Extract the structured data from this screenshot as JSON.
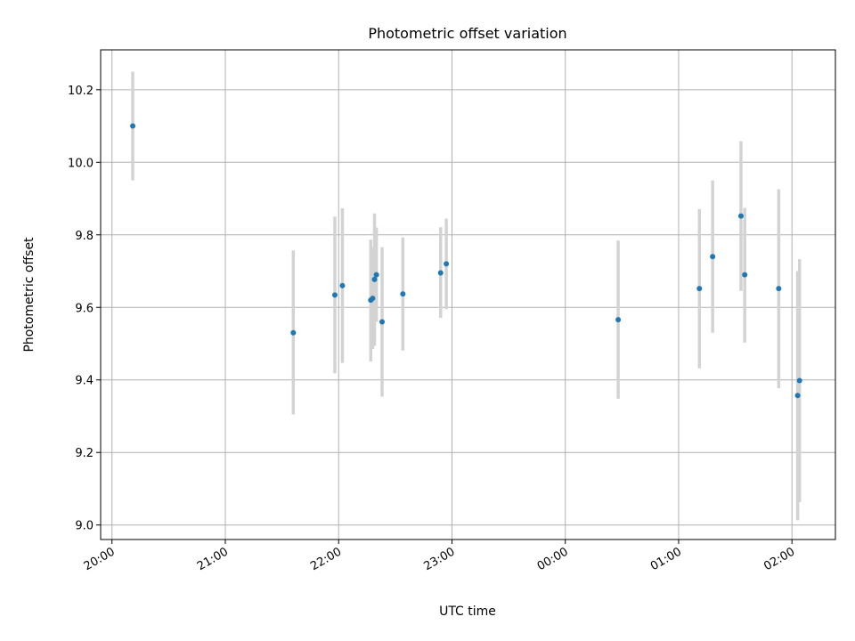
{
  "chart_data": {
    "type": "scatter",
    "title": "Photometric offset variation",
    "xlabel": "UTC time",
    "ylabel": "Photometric offset",
    "x_axis": "time",
    "xlim": [
      "2000-01-01T19:54",
      "2000-01-02T02:23"
    ],
    "ylim": [
      8.96,
      10.31
    ],
    "x_ticks": [
      {
        "t": "2000-01-01T20:00",
        "label": "20:00"
      },
      {
        "t": "2000-01-01T21:00",
        "label": "21:00"
      },
      {
        "t": "2000-01-01T22:00",
        "label": "22:00"
      },
      {
        "t": "2000-01-01T23:00",
        "label": "23:00"
      },
      {
        "t": "2000-01-02T00:00",
        "label": "00:00"
      },
      {
        "t": "2000-01-02T01:00",
        "label": "01:00"
      },
      {
        "t": "2000-01-02T02:00",
        "label": "02:00"
      }
    ],
    "y_ticks": [
      {
        "v": 9.0,
        "label": "9.0"
      },
      {
        "v": 9.2,
        "label": "9.2"
      },
      {
        "v": 9.4,
        "label": "9.4"
      },
      {
        "v": 9.6,
        "label": "9.6"
      },
      {
        "v": 9.8,
        "label": "9.8"
      },
      {
        "v": 10.0,
        "label": "10.0"
      },
      {
        "v": 10.2,
        "label": "10.2"
      }
    ],
    "grid": true,
    "colors": {
      "point": "#1f77b4",
      "errorbar": "#d3d3d3",
      "grid": "#b0b0b0"
    },
    "points": [
      {
        "t": "2000-01-01T20:11",
        "y": 10.1,
        "lo": 9.95,
        "hi": 10.25
      },
      {
        "t": "2000-01-01T21:36",
        "y": 9.53,
        "lo": 9.305,
        "hi": 9.757
      },
      {
        "t": "2000-01-01T21:58",
        "y": 9.634,
        "lo": 9.418,
        "hi": 9.85
      },
      {
        "t": "2000-01-01T22:02",
        "y": 9.66,
        "lo": 9.447,
        "hi": 9.873
      },
      {
        "t": "2000-01-01T22:17",
        "y": 9.62,
        "lo": 9.451,
        "hi": 9.787
      },
      {
        "t": "2000-01-01T22:18",
        "y": 9.625,
        "lo": 9.485,
        "hi": 9.765
      },
      {
        "t": "2000-01-01T22:19",
        "y": 9.677,
        "lo": 9.494,
        "hi": 9.859
      },
      {
        "t": "2000-01-01T22:20",
        "y": 9.69,
        "lo": 9.56,
        "hi": 9.82
      },
      {
        "t": "2000-01-01T22:23",
        "y": 9.56,
        "lo": 9.354,
        "hi": 9.766
      },
      {
        "t": "2000-01-01T22:34",
        "y": 9.637,
        "lo": 9.481,
        "hi": 9.793
      },
      {
        "t": "2000-01-01T22:54",
        "y": 9.695,
        "lo": 9.571,
        "hi": 9.821
      },
      {
        "t": "2000-01-01T22:57",
        "y": 9.72,
        "lo": 9.595,
        "hi": 9.845
      },
      {
        "t": "2000-01-02T00:28",
        "y": 9.566,
        "lo": 9.348,
        "hi": 9.784
      },
      {
        "t": "2000-01-02T01:11",
        "y": 9.652,
        "lo": 9.432,
        "hi": 9.871
      },
      {
        "t": "2000-01-02T01:18",
        "y": 9.74,
        "lo": 9.53,
        "hi": 9.95
      },
      {
        "t": "2000-01-02T01:33",
        "y": 9.852,
        "lo": 9.645,
        "hi": 10.058
      },
      {
        "t": "2000-01-02T01:35",
        "y": 9.69,
        "lo": 9.503,
        "hi": 9.874
      },
      {
        "t": "2000-01-02T01:53",
        "y": 9.652,
        "lo": 9.377,
        "hi": 9.926
      },
      {
        "t": "2000-01-02T02:03",
        "y": 9.357,
        "lo": 9.013,
        "hi": 9.7
      },
      {
        "t": "2000-01-02T02:04",
        "y": 9.398,
        "lo": 9.063,
        "hi": 9.733
      }
    ]
  }
}
